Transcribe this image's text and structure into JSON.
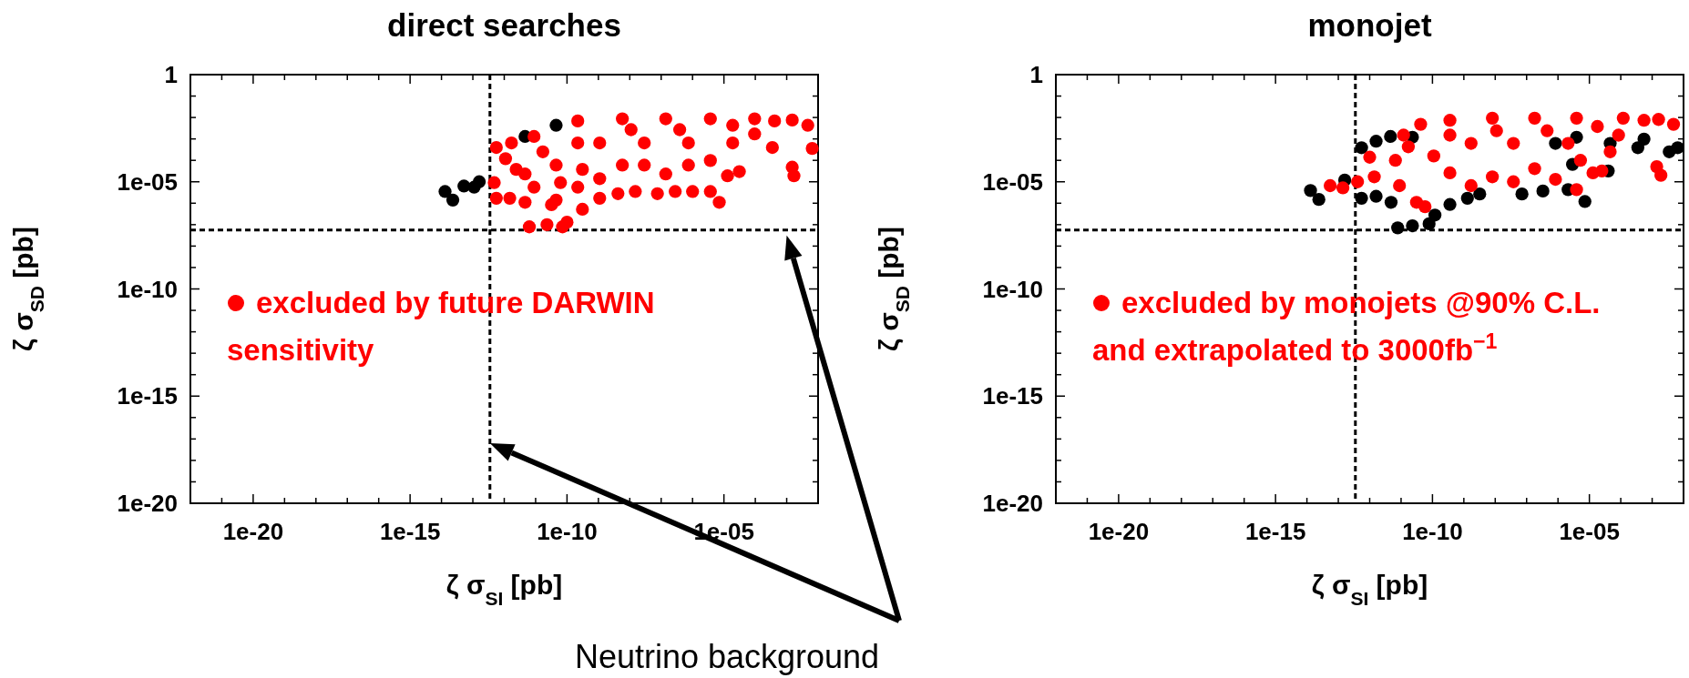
{
  "chart_data": [
    {
      "type": "scatter",
      "title": "direct searches",
      "xlabel": "ζ σ$_{SI}$ [pb]",
      "ylabel": "ζ σ$_{SD}$ [pb]",
      "log": "xy",
      "marker": "circle",
      "legend": "left",
      "xlim": [
        1e-22,
        0.01
      ],
      "ylim": [
        1e-20,
        1
      ],
      "xticks": [
        {
          "value": 1e-21,
          "label": null
        },
        {
          "value": 1e-20,
          "label": "1e-20"
        },
        {
          "value": 1e-19,
          "label": null
        },
        {
          "value": 1e-18,
          "label": null
        },
        {
          "value": 1e-17,
          "label": null
        },
        {
          "value": 1e-16,
          "label": null
        },
        {
          "value": 1e-15,
          "label": "1e-15"
        },
        {
          "value": 1e-14,
          "label": null
        },
        {
          "value": 1e-13,
          "label": null
        },
        {
          "value": 1e-12,
          "label": null
        },
        {
          "value": 1e-11,
          "label": null
        },
        {
          "value": 1e-10,
          "label": "1e-10"
        },
        {
          "value": 1e-09,
          "label": null
        },
        {
          "value": 1e-08,
          "label": null
        },
        {
          "value": 1e-07,
          "label": null
        },
        {
          "value": 1e-06,
          "label": null
        },
        {
          "value": 1e-05,
          "label": "1e-05"
        },
        {
          "value": 0.0001,
          "label": null
        },
        {
          "value": 0.001,
          "label": null
        }
      ],
      "yticks": [
        1,
        {
          "value": 0.1,
          "label": null
        },
        {
          "value": 0.01,
          "label": null
        },
        {
          "value": 0.001,
          "label": null
        },
        {
          "value": 0.0001,
          "label": null
        },
        {
          "value": 1e-05,
          "label": "1e-05"
        },
        {
          "value": 1e-06,
          "label": null
        },
        {
          "value": 1e-07,
          "label": null
        },
        {
          "value": 1e-08,
          "label": null
        },
        {
          "value": 1e-09,
          "label": null
        },
        {
          "value": 1e-10,
          "label": "1e-10"
        },
        {
          "value": 1e-11,
          "label": null
        },
        {
          "value": 1e-12,
          "label": null
        },
        {
          "value": 1e-13,
          "label": null
        },
        {
          "value": 1e-14,
          "label": null
        },
        {
          "value": 1e-15,
          "label": "1e-15"
        },
        {
          "value": 1e-16,
          "label": null
        },
        {
          "value": 1e-17,
          "label": null
        },
        {
          "value": 1e-18,
          "label": null
        },
        {
          "value": 1e-19,
          "label": null
        },
        {
          "value": 1e-20,
          "label": "1e-20"
        }
      ],
      "ref_lines": [
        {
          "axis": "x",
          "value": 3.5e-13,
          "color": "#000000",
          "line_style": "dashed"
        },
        {
          "axis": "y",
          "value": 5.6e-08,
          "color": "#000000",
          "line_style": "dashed"
        }
      ],
      "annotations": [
        "Neutrino background"
      ],
      "series": [
        {
          "color": "#000000",
          "x": [
            1.3e-14,
            2.3e-14,
            5.2e-14,
            1.1e-13,
            1.6e-13,
            4.5e-11,
            4.6e-12
          ],
          "values": [
            3.5e-06,
            1.4e-06,
            6.3e-06,
            5.6e-06,
            1e-05,
            0.0043,
            0.0013
          ]
        },
        {
          "name": "excluded by future DARWIN sensitivity",
          "color": "#ff0000",
          "x": [
            5.6e-13,
            1.7e-12,
            1.1e-12,
            4.8e-13,
            5.6e-13,
            1.5e-12,
            4.6e-12,
            6.3e-12,
            2.3e-11,
            7.2e-11,
            1e-10,
            3.1e-10,
            1.1e-09,
            4.2e-09,
            1.5e-08,
            7.6e-08,
            2.8e-07,
            1e-06,
            3.7e-06,
            7.1e-06,
            1.3e-05,
            3.1e-05,
            9.5e-05,
            0.00041,
            0.0015,
            0.0047,
            0.0065,
            0.00035,
            0.0015,
            0.0017,
            7.4e-07,
            1.4e-07,
            5.8e-09,
            2.2e-10,
            4.5e-11,
            8.9e-12,
            3.2e-11,
            1.1e-09,
            2.9e-08,
            7.4e-07,
            1.9e-05,
            2.2e-10,
            5.8e-09,
            1.4e-07,
            3.7e-06,
            9.5e-05,
            8.9e-12,
            1.7e-11,
            6.2e-11,
            2.2e-10,
            2.9e-08,
            3.7e-06,
            1.1e-09,
            1.1e-08,
            3.9e-07,
            1.9e-05,
            4.6e-12,
            2.4e-12,
            4.5e-11,
            3.1e-10
          ],
          "values": [
            0.0004,
            0.00065,
            0.00012,
            9.1e-06,
            1.7e-06,
            1.7e-06,
            1.1e-06,
            7.9e-08,
            1e-07,
            7.9e-08,
            1.3e-07,
            5.2e-07,
            1.7e-06,
            2.8e-06,
            3.5e-06,
            2.8e-06,
            3.5e-06,
            3.5e-06,
            3.5e-06,
            1.1e-06,
            1.9e-05,
            3e-05,
            0.0017,
            0.0069,
            0.0076,
            0.0043,
            0.00036,
            0.0004,
            4.8e-05,
            1.9e-05,
            6e-05,
            2.3e-05,
            6e-05,
            0.00065,
            6e-05,
            5.6e-06,
            8.5e-07,
            0.00065,
            0.00065,
            0.00065,
            0.00065,
            0.0069,
            0.0087,
            0.0087,
            0.0087,
            0.0087,
            0.0013,
            0.00025,
            9.1e-06,
            5.6e-06,
            6e-05,
            9.8e-05,
            1.4e-05,
            0.0027,
            0.0027,
            0.0043,
            2.3e-05,
            3.8e-05,
            1.4e-06,
            3.8e-05
          ]
        }
      ]
    },
    {
      "type": "scatter",
      "title": "monojet",
      "xlabel": "ζ σ$_{SI}$ [pb]",
      "ylabel": "ζ σ$_{SD}$ [pb]",
      "log": "xy",
      "marker": "circle",
      "legend": "left",
      "xlim": [
        1e-22,
        0.01
      ],
      "ylim": [
        1e-20,
        1
      ],
      "xticks": [
        {
          "value": 1e-21,
          "label": null
        },
        {
          "value": 1e-20,
          "label": "1e-20"
        },
        {
          "value": 1e-19,
          "label": null
        },
        {
          "value": 1e-18,
          "label": null
        },
        {
          "value": 1e-17,
          "label": null
        },
        {
          "value": 1e-16,
          "label": null
        },
        {
          "value": 1e-15,
          "label": "1e-15"
        },
        {
          "value": 1e-14,
          "label": null
        },
        {
          "value": 1e-13,
          "label": null
        },
        {
          "value": 1e-12,
          "label": null
        },
        {
          "value": 1e-11,
          "label": null
        },
        {
          "value": 1e-10,
          "label": "1e-10"
        },
        {
          "value": 1e-09,
          "label": null
        },
        {
          "value": 1e-08,
          "label": null
        },
        {
          "value": 1e-07,
          "label": null
        },
        {
          "value": 1e-06,
          "label": null
        },
        {
          "value": 1e-05,
          "label": "1e-05"
        },
        {
          "value": 0.0001,
          "label": null
        },
        {
          "value": 0.001,
          "label": null
        }
      ],
      "yticks": [
        1,
        {
          "value": 0.1,
          "label": null
        },
        {
          "value": 0.01,
          "label": null
        },
        {
          "value": 0.001,
          "label": null
        },
        {
          "value": 0.0001,
          "label": null
        },
        {
          "value": 1e-05,
          "label": "1e-05"
        },
        {
          "value": 1e-06,
          "label": null
        },
        {
          "value": 1e-07,
          "label": null
        },
        {
          "value": 1e-08,
          "label": null
        },
        {
          "value": 1e-09,
          "label": null
        },
        {
          "value": 1e-10,
          "label": "1e-10"
        },
        {
          "value": 1e-11,
          "label": null
        },
        {
          "value": 1e-12,
          "label": null
        },
        {
          "value": 1e-13,
          "label": null
        },
        {
          "value": 1e-14,
          "label": null
        },
        {
          "value": 1e-15,
          "label": "1e-15"
        },
        {
          "value": 1e-16,
          "label": null
        },
        {
          "value": 1e-17,
          "label": null
        },
        {
          "value": 1e-18,
          "label": null
        },
        {
          "value": 1e-19,
          "label": null
        },
        {
          "value": 1e-20,
          "label": "1e-20"
        }
      ],
      "ref_lines": [
        {
          "axis": "x",
          "value": 3.5e-13,
          "color": "#000000",
          "line_style": "dashed"
        },
        {
          "axis": "y",
          "value": 5.6e-08,
          "color": "#000000",
          "line_style": "dashed"
        }
      ],
      "series": [
        {
          "color": "#000000",
          "x": [
            1.3e-14,
            2.4e-14,
            1.6e-13,
            5.5e-13,
            1.6e-12,
            4.6e-12,
            2.3e-11,
            5.5e-13,
            1.6e-12,
            4.8e-12,
            7.8e-12,
            2.3e-11,
            7.8e-11,
            1.2e-10,
            3.6e-10,
            1.3e-09,
            3.2e-09,
            7.1e-08,
            3.3e-07,
            2.1e-06,
            7.2e-06,
            4e-05,
            0.00035,
            0.00055,
            0.0035,
            0.0065,
            2.9e-06,
            4.6e-05,
            3.9e-06,
            8.3e-07
          ],
          "values": [
            3.9e-06,
            1.5e-06,
            1.2e-05,
            0.00039,
            0.00078,
            0.0013,
            0.0012,
            1.7e-06,
            2.1e-06,
            1.1e-06,
            7.1e-08,
            8.9e-08,
            1.1e-07,
            2.8e-07,
            8.7e-07,
            1.7e-06,
            2.7e-06,
            2.7e-06,
            3.7e-06,
            4.3e-06,
            1.2e-06,
            3.2e-05,
            0.00039,
            0.00098,
            0.00025,
            0.00039,
            6.5e-05,
            0.00062,
            0.0012,
            0.00062
          ]
        },
        {
          "name": "excluded by monojets @90% C.L. and extrapolated to 3000fb$^{−1}$",
          "color": "#ff0000",
          "x": [
            5.5e-14,
            1.4e-13,
            4.1e-13,
            1e-12,
            6.6e-12,
            1.2e-11,
            1.7e-11,
            4.2e-11,
            3.6e-10,
            8.1e-09,
            1.8e-07,
            3.9e-06,
            0.00012,
            0.00055,
            0.0016,
            0.0048,
            0.0014,
            0.0019,
            8.3e-07,
            3.9e-06,
            1.3e-05,
            2.5e-05,
            2.1e-06,
            8.5e-05,
            1.8e-07,
            8.1e-09,
            3.6e-10,
            3.1e-11,
            5.8e-11,
            8.9e-12,
            1.4e-12,
            1.7e-09,
            3.8e-08,
            1.7e-09,
            3.8e-08,
            1.1e-10,
            3.6e-10,
            1.1e-08,
            4.5e-07,
            1.8e-05,
            5.2e-06,
            4.6e-05
          ],
          "values": [
            6.6e-06,
            5.2e-06,
            1e-05,
            0.00014,
            0.0001,
            0.0015,
            0.00043,
            0.0048,
            0.0074,
            0.0093,
            0.0093,
            0.0093,
            0.0093,
            0.0074,
            0.0081,
            0.0048,
            5.1e-05,
            2e-05,
            1.3e-05,
            4.3e-06,
            2.6e-05,
            3.2e-05,
            0.00062,
            0.0015,
            4.1e-05,
            1.7e-05,
            2.6e-05,
            1.1e-06,
            6.9e-07,
            6.6e-06,
            1.7e-05,
            0.00062,
            0.00062,
            6.6e-06,
            1e-05,
            0.00016,
            0.0015,
            0.0024,
            0.0024,
            0.0038,
            0.0001,
            0.00025
          ]
        }
      ]
    }
  ]
}
